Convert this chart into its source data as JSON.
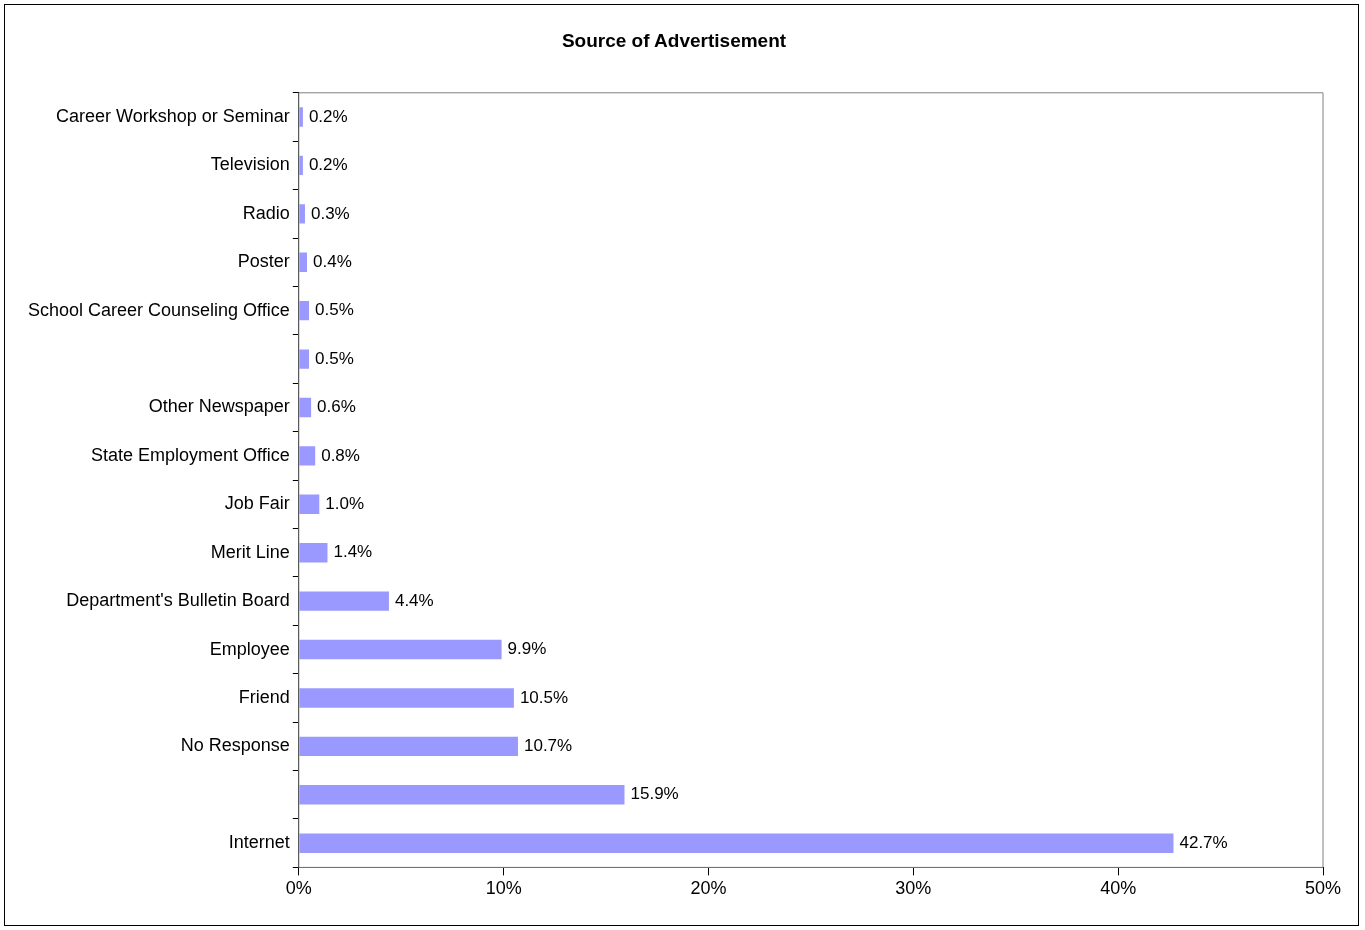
{
  "chart_data": {
    "type": "bar",
    "orientation": "horizontal",
    "title": "Source of Advertisement",
    "categories": [
      "Career Workshop or Seminar",
      "Television",
      "Radio",
      "Poster",
      "School Career Counseling Office",
      null,
      "Other Newspaper",
      "State Employment Office",
      "Job Fair",
      "Merit Line",
      "Department's Bulletin Board",
      "Employee",
      "Friend",
      "No Response",
      null,
      "Internet"
    ],
    "values": [
      0.2,
      0.2,
      0.3,
      0.4,
      0.5,
      0.5,
      0.6,
      0.8,
      1.0,
      1.4,
      4.4,
      9.9,
      10.5,
      10.7,
      15.9,
      42.7
    ],
    "value_labels": [
      "0.2%",
      "0.2%",
      "0.3%",
      "0.4%",
      "0.5%",
      "0.5%",
      "0.6%",
      "0.8%",
      "1.0%",
      "1.4%",
      "4.4%",
      "9.9%",
      "10.5%",
      "10.7%",
      "15.9%",
      "42.7%"
    ],
    "color": "#9999ff",
    "xlim": [
      0,
      50
    ],
    "xticks": [
      {
        "value": 0,
        "label": "0%"
      },
      {
        "value": 10,
        "label": "10%"
      },
      {
        "value": 20,
        "label": "20%"
      },
      {
        "value": 30,
        "label": "30%"
      },
      {
        "value": 40,
        "label": "40%"
      },
      {
        "value": 50,
        "label": "50%"
      }
    ],
    "grid": false,
    "legend": false
  }
}
